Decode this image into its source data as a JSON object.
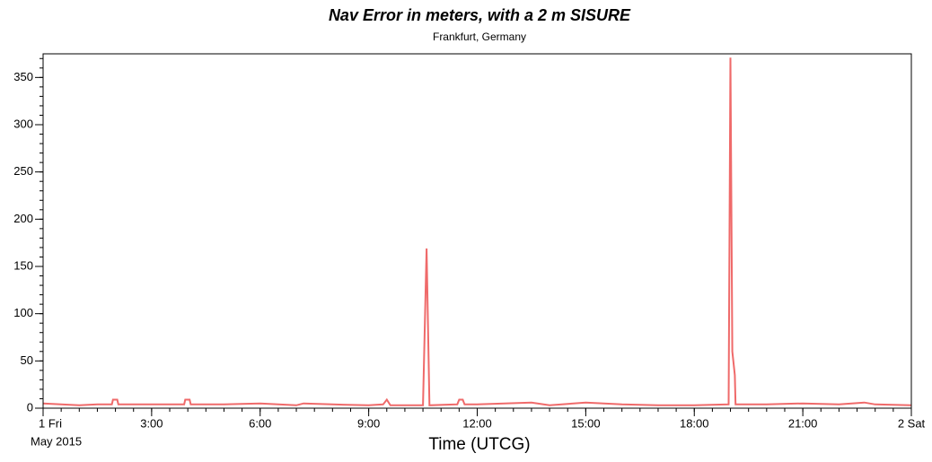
{
  "chart_data": {
    "type": "line",
    "title": "Nav Error in meters, with a 2 m SISURE",
    "subtitle": "Frankfurt, Germany",
    "x_label": "Time (UTCG)",
    "date_label": "May 2015",
    "color": "#ef6a6a",
    "x": [
      0,
      0.5,
      1,
      1.5,
      1.9,
      1.93,
      2.05,
      2.08,
      3,
      3.9,
      3.93,
      4.05,
      4.08,
      5,
      6,
      7,
      7.2,
      8,
      9,
      9.4,
      9.5,
      9.6,
      10.5,
      10.6,
      10.68,
      11.45,
      11.5,
      11.6,
      11.65,
      12,
      13.5,
      14,
      15,
      16,
      17,
      18,
      18.95,
      19.0,
      19.05,
      19.12,
      19.14,
      20,
      21,
      22,
      22.7,
      23,
      24
    ],
    "values": [
      5,
      4,
      3,
      4,
      4,
      9,
      9,
      4,
      4,
      4,
      9,
      9,
      4,
      4,
      5,
      3,
      5,
      4,
      3,
      4,
      9,
      3,
      3,
      169,
      3,
      4,
      9,
      9,
      4,
      4,
      6,
      3,
      6,
      4,
      3,
      3,
      4,
      371,
      60,
      35,
      4,
      4,
      5,
      4,
      6,
      4,
      3
    ],
    "xlim": [
      0,
      24
    ],
    "xticks": [
      {
        "value": 0,
        "label": "1 Fri"
      },
      {
        "value": 3,
        "label": "3:00"
      },
      {
        "value": 6,
        "label": "6:00"
      },
      {
        "value": 9,
        "label": "9:00"
      },
      {
        "value": 12,
        "label": "12:00"
      },
      {
        "value": 15,
        "label": "15:00"
      },
      {
        "value": 18,
        "label": "18:00"
      },
      {
        "value": 21,
        "label": "21:00"
      },
      {
        "value": 24,
        "label": "2 Sat"
      }
    ],
    "ylim": [
      0,
      375
    ],
    "yticks": [
      0,
      50,
      100,
      150,
      200,
      250,
      300,
      350
    ]
  }
}
